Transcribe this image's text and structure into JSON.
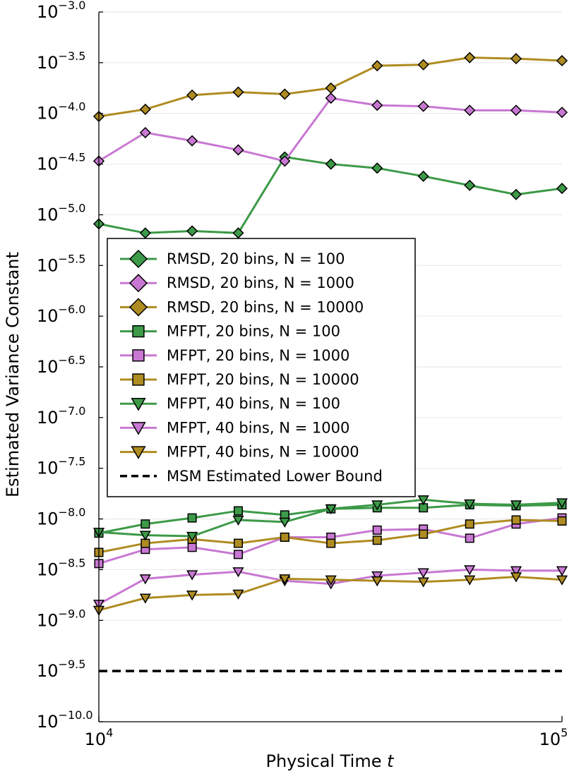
{
  "chart_data": {
    "type": "line",
    "xlabel": "Physical Time",
    "xlabel_var": "t",
    "ylabel": "Estimated Variance Constant",
    "xscale": "log",
    "yscale": "log",
    "xlim": [
      10000,
      100000
    ],
    "ylim": [
      1e-10,
      0.001
    ],
    "x_ticks": [
      {
        "base": "10",
        "exp": "4",
        "value": 10000
      },
      {
        "base": "10",
        "exp": "5",
        "value": 100000
      }
    ],
    "y_ticks": [
      {
        "base": "10",
        "exp": "−3.0",
        "value": -3.0
      },
      {
        "base": "10",
        "exp": "−3.5",
        "value": -3.5
      },
      {
        "base": "10",
        "exp": "−4.0",
        "value": -4.0
      },
      {
        "base": "10",
        "exp": "−4.5",
        "value": -4.5
      },
      {
        "base": "10",
        "exp": "−5.0",
        "value": -5.0
      },
      {
        "base": "10",
        "exp": "−5.5",
        "value": -5.5
      },
      {
        "base": "10",
        "exp": "−6.0",
        "value": -6.0
      },
      {
        "base": "10",
        "exp": "−6.5",
        "value": -6.5
      },
      {
        "base": "10",
        "exp": "−7.0",
        "value": -7.0
      },
      {
        "base": "10",
        "exp": "−7.5",
        "value": -7.5
      },
      {
        "base": "10",
        "exp": "−8.0",
        "value": -8.0
      },
      {
        "base": "10",
        "exp": "−8.5",
        "value": -8.5
      },
      {
        "base": "10",
        "exp": "−9.0",
        "value": -9.0
      },
      {
        "base": "10",
        "exp": "−9.5",
        "value": -9.5
      },
      {
        "base": "10",
        "exp": "−10.0",
        "value": -10.0
      }
    ],
    "grid": "horizontal",
    "legend_position": "center-left",
    "x": [
      10000,
      12600,
      15900,
      20000,
      25200,
      31700,
      39900,
      50200,
      63200,
      79600,
      100000
    ],
    "series": [
      {
        "name": "RMSD, 20 bins, N = 100",
        "marker": "diamond",
        "color": "#3c9a48",
        "log10_values": [
          -5.09,
          -5.18,
          -5.16,
          -5.18,
          -4.43,
          -4.5,
          -4.54,
          -4.62,
          -4.71,
          -4.8,
          -4.74
        ]
      },
      {
        "name": "RMSD, 20 bins, N = 1000",
        "marker": "diamond",
        "color": "#c878d2",
        "log10_values": [
          -4.47,
          -4.19,
          -4.27,
          -4.36,
          -4.47,
          -3.85,
          -3.92,
          -3.93,
          -3.97,
          -3.97,
          -3.99
        ]
      },
      {
        "name": "RMSD, 20 bins, N = 10000",
        "marker": "diamond",
        "color": "#af8c21",
        "log10_values": [
          -4.03,
          -3.96,
          -3.82,
          -3.79,
          -3.81,
          -3.75,
          -3.53,
          -3.52,
          -3.45,
          -3.46,
          -3.48
        ]
      },
      {
        "name": "MFPT, 20 bins, N = 100",
        "marker": "square",
        "color": "#3c9a48",
        "log10_values": [
          -8.14,
          -8.05,
          -7.99,
          -7.92,
          -7.96,
          -7.9,
          -7.89,
          -7.89,
          -7.86,
          -7.87,
          -7.86
        ]
      },
      {
        "name": "MFPT, 20 bins, N = 1000",
        "marker": "square",
        "color": "#c878d2",
        "log10_values": [
          -8.44,
          -8.3,
          -8.28,
          -8.35,
          -8.18,
          -8.18,
          -8.11,
          -8.1,
          -8.19,
          -8.05,
          -7.99
        ]
      },
      {
        "name": "MFPT, 20 bins, N = 10000",
        "marker": "square",
        "color": "#af8c21",
        "log10_values": [
          -8.33,
          -8.24,
          -8.2,
          -8.24,
          -8.18,
          -8.24,
          -8.21,
          -8.15,
          -8.05,
          -8.01,
          -8.02
        ]
      },
      {
        "name": "MFPT, 40 bins, N = 100",
        "marker": "triangle-down",
        "color": "#3c9a48",
        "log10_values": [
          -8.13,
          -8.16,
          -8.17,
          -8.01,
          -8.03,
          -7.9,
          -7.86,
          -7.81,
          -7.85,
          -7.86,
          -7.84
        ]
      },
      {
        "name": "MFPT, 40 bins, N = 1000",
        "marker": "triangle-down",
        "color": "#c878d2",
        "log10_values": [
          -8.84,
          -8.59,
          -8.55,
          -8.52,
          -8.61,
          -8.64,
          -8.56,
          -8.53,
          -8.5,
          -8.51,
          -8.51
        ]
      },
      {
        "name": "MFPT, 40 bins, N = 10000",
        "marker": "triangle-down",
        "color": "#af8c21",
        "log10_values": [
          -8.9,
          -8.78,
          -8.75,
          -8.74,
          -8.59,
          -8.6,
          -8.61,
          -8.62,
          -8.6,
          -8.57,
          -8.6
        ]
      }
    ],
    "reference_lines": [
      {
        "name": "MSM Estimated Lower Bound",
        "style": "dashed",
        "color": "#000000",
        "log10_value": -9.5
      }
    ]
  }
}
